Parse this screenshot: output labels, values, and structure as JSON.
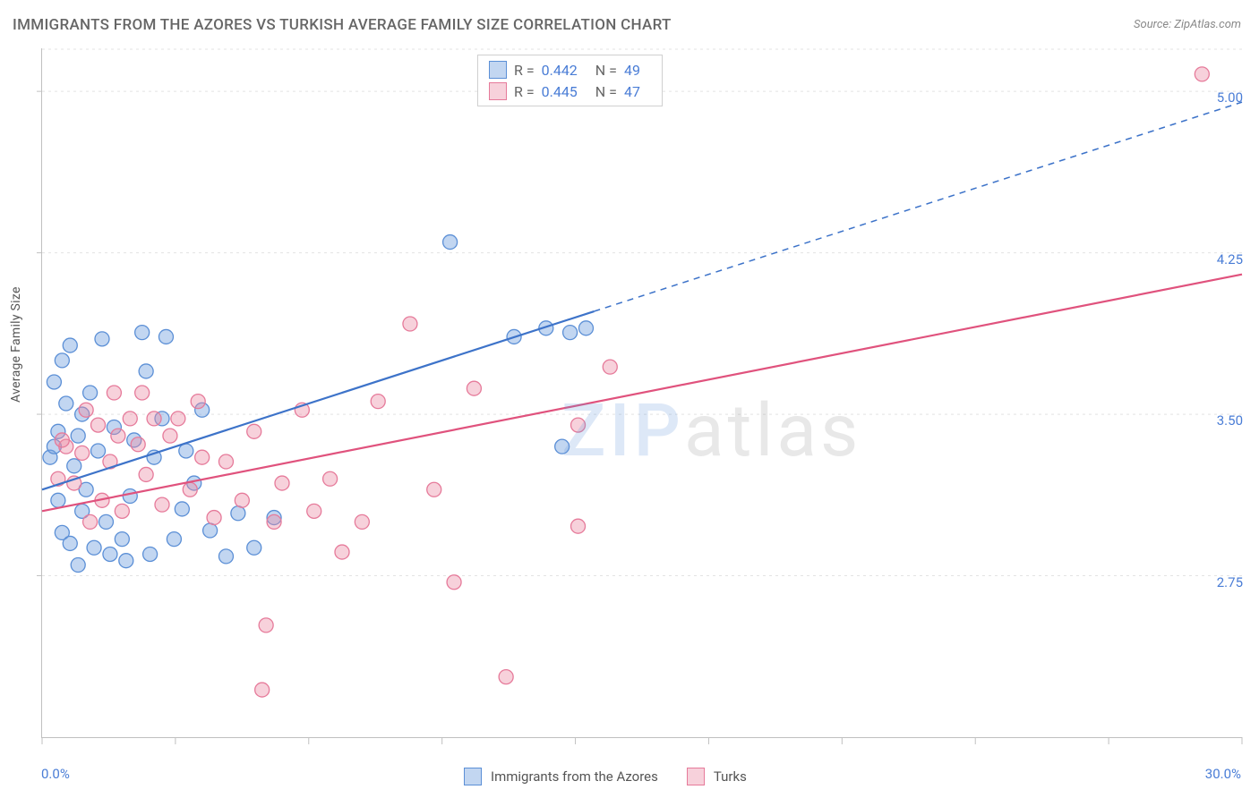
{
  "title": "IMMIGRANTS FROM THE AZORES VS TURKISH AVERAGE FAMILY SIZE CORRELATION CHART",
  "source": "Source: ZipAtlas.com",
  "y_axis_label": "Average Family Size",
  "watermark_zip": "ZIP",
  "watermark_atlas": "atlas",
  "chart": {
    "type": "scatter",
    "xlim": [
      0,
      30
    ],
    "ylim": [
      2.0,
      5.2
    ],
    "x_ticks_major": [
      0,
      6.7,
      13.4,
      30
    ],
    "x_tick_labels": {
      "start": "0.0%",
      "end": "30.0%"
    },
    "y_ticks": [
      2.75,
      3.5,
      4.25,
      5.0
    ],
    "y_minor_visible": false,
    "grid_color": "#e3e3e3",
    "grid_dash": "3,4",
    "background_color": "#ffffff",
    "axis_color": "#c0c0c0",
    "marker_radius": 8,
    "marker_stroke_width": 1.3,
    "trend_line_width": 2.2,
    "series": [
      {
        "key": "azores",
        "label": "Immigrants from the Azores",
        "R": "0.442",
        "N": "49",
        "fill": "rgba(120,165,225,0.45)",
        "stroke": "#5b8fd6",
        "line_color": "#3d73c9",
        "trend": {
          "x1": 0,
          "y1": 3.15,
          "x2": 30,
          "y2": 4.95,
          "solid_until_x": 13.8
        },
        "points": [
          [
            0.2,
            3.3
          ],
          [
            0.3,
            3.35
          ],
          [
            0.3,
            3.65
          ],
          [
            0.4,
            3.1
          ],
          [
            0.4,
            3.42
          ],
          [
            0.5,
            3.75
          ],
          [
            0.5,
            2.95
          ],
          [
            0.6,
            3.55
          ],
          [
            0.7,
            3.82
          ],
          [
            0.7,
            2.9
          ],
          [
            0.8,
            3.26
          ],
          [
            0.9,
            3.4
          ],
          [
            1.0,
            3.5
          ],
          [
            1.0,
            3.05
          ],
          [
            1.1,
            3.15
          ],
          [
            1.2,
            3.6
          ],
          [
            1.3,
            2.88
          ],
          [
            1.4,
            3.33
          ],
          [
            1.5,
            3.85
          ],
          [
            1.6,
            3.0
          ],
          [
            1.8,
            3.44
          ],
          [
            2.0,
            2.92
          ],
          [
            2.1,
            2.82
          ],
          [
            2.2,
            3.12
          ],
          [
            2.3,
            3.38
          ],
          [
            2.5,
            3.88
          ],
          [
            2.7,
            2.85
          ],
          [
            2.8,
            3.3
          ],
          [
            3.0,
            3.48
          ],
          [
            3.1,
            3.86
          ],
          [
            3.3,
            2.92
          ],
          [
            3.5,
            3.06
          ],
          [
            3.8,
            3.18
          ],
          [
            4.0,
            3.52
          ],
          [
            4.2,
            2.96
          ],
          [
            4.6,
            2.84
          ],
          [
            4.9,
            3.04
          ],
          [
            5.3,
            2.88
          ],
          [
            5.8,
            3.02
          ],
          [
            10.2,
            4.3
          ],
          [
            11.8,
            3.86
          ],
          [
            12.6,
            3.9
          ],
          [
            13.0,
            3.35
          ],
          [
            13.2,
            3.88
          ],
          [
            13.6,
            3.9
          ],
          [
            0.9,
            2.8
          ],
          [
            1.7,
            2.85
          ],
          [
            2.6,
            3.7
          ],
          [
            3.6,
            3.33
          ]
        ]
      },
      {
        "key": "turks",
        "label": "Turks",
        "R": "0.445",
        "N": "47",
        "fill": "rgba(235,140,165,0.40)",
        "stroke": "#e67a9a",
        "line_color": "#e0527d",
        "trend": {
          "x1": 0,
          "y1": 3.05,
          "x2": 30,
          "y2": 4.15,
          "solid_until_x": 30
        },
        "points": [
          [
            0.4,
            3.2
          ],
          [
            0.6,
            3.35
          ],
          [
            0.8,
            3.18
          ],
          [
            1.0,
            3.32
          ],
          [
            1.2,
            3.0
          ],
          [
            1.4,
            3.45
          ],
          [
            1.5,
            3.1
          ],
          [
            1.7,
            3.28
          ],
          [
            1.9,
            3.4
          ],
          [
            2.0,
            3.05
          ],
          [
            2.2,
            3.48
          ],
          [
            2.4,
            3.36
          ],
          [
            2.6,
            3.22
          ],
          [
            2.8,
            3.48
          ],
          [
            3.0,
            3.08
          ],
          [
            3.2,
            3.4
          ],
          [
            3.4,
            3.48
          ],
          [
            3.7,
            3.15
          ],
          [
            4.0,
            3.3
          ],
          [
            4.3,
            3.02
          ],
          [
            4.6,
            3.28
          ],
          [
            5.0,
            3.1
          ],
          [
            5.3,
            3.42
          ],
          [
            5.6,
            2.52
          ],
          [
            5.8,
            3.0
          ],
          [
            5.5,
            2.22
          ],
          [
            6.0,
            3.18
          ],
          [
            6.5,
            3.52
          ],
          [
            6.8,
            3.05
          ],
          [
            7.2,
            3.2
          ],
          [
            7.5,
            2.86
          ],
          [
            8.0,
            3.0
          ],
          [
            8.4,
            3.56
          ],
          [
            9.2,
            3.92
          ],
          [
            9.8,
            3.15
          ],
          [
            10.3,
            2.72
          ],
          [
            10.8,
            3.62
          ],
          [
            11.6,
            2.28
          ],
          [
            13.4,
            3.45
          ],
          [
            13.4,
            2.98
          ],
          [
            14.2,
            3.72
          ],
          [
            29.0,
            5.08
          ],
          [
            0.5,
            3.38
          ],
          [
            1.1,
            3.52
          ],
          [
            1.8,
            3.6
          ],
          [
            2.5,
            3.6
          ],
          [
            3.9,
            3.56
          ]
        ]
      }
    ]
  },
  "legend_top_labels": {
    "R": "R =",
    "N": "N ="
  },
  "legend_bottom": [
    {
      "key": "azores",
      "label": "Immigrants from the Azores"
    },
    {
      "key": "turks",
      "label": "Turks"
    }
  ]
}
